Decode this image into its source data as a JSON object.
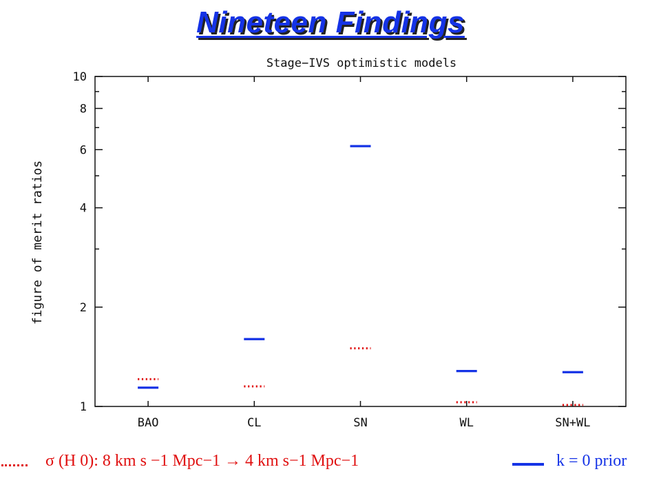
{
  "slide": {
    "title": "Nineteen Findings"
  },
  "legend": {
    "dotted_text": "σ (H 0): 8 km s −1 Mpc−1 → 4 km s−1 Mpc−1",
    "solid_text": "k = 0 prior",
    "dotted_color": "#e01010",
    "solid_color": "#1533e6"
  },
  "chart_data": {
    "type": "scatter",
    "title": "Stage−IVS optimistic models",
    "xlabel": "",
    "ylabel": "figure of merit ratios",
    "y_scale": "log",
    "ylim": [
      1,
      10
    ],
    "y_ticks_labeled": [
      1,
      2,
      4,
      6,
      8,
      10
    ],
    "y_ticks_minor": [
      3,
      5,
      7,
      9
    ],
    "categories": [
      "BAO",
      "CL",
      "SN",
      "WL",
      "SN+WL"
    ],
    "series": [
      {
        "style": "solid",
        "color": "#1533e6",
        "values": [
          1.14,
          1.6,
          6.15,
          1.28,
          1.27
        ]
      },
      {
        "style": "dotted",
        "color": "#e01010",
        "values": [
          1.21,
          1.15,
          1.5,
          1.03,
          1.01
        ]
      }
    ]
  }
}
